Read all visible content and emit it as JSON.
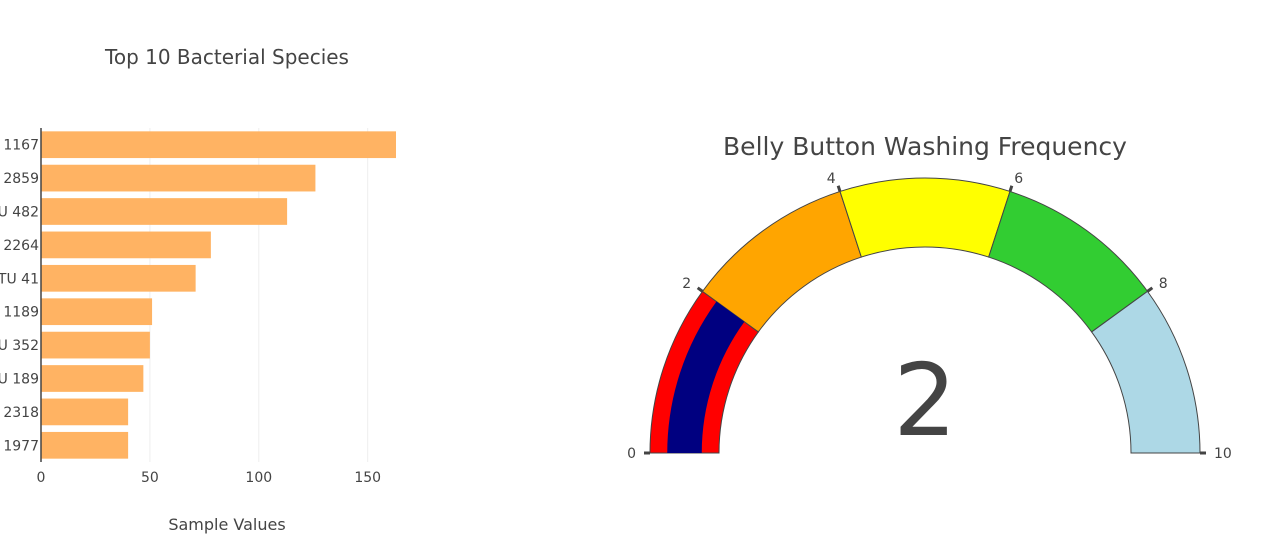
{
  "chart_data": [
    {
      "type": "bar",
      "orientation": "horizontal",
      "title": "Top 10 Bacterial Species",
      "xlabel": "Sample Values",
      "ylabel": "",
      "xlim": [
        0,
        163
      ],
      "x_ticks": [
        "0",
        "50",
        "100",
        "150"
      ],
      "grid": true,
      "bar_color": "#ffb363",
      "categories": [
        "1167",
        "2859",
        "U 482",
        "2264",
        "TU 41",
        "1189",
        "U 352",
        "U 189",
        "2318",
        "1977"
      ],
      "values": [
        163,
        126,
        113,
        78,
        71,
        51,
        50,
        47,
        40,
        40
      ]
    },
    {
      "type": "gauge",
      "title": "Belly Button Washing Frequency",
      "value": 2,
      "value_label": "2",
      "range": [
        0,
        10
      ],
      "ticks": [
        "0",
        "2",
        "4",
        "6",
        "8",
        "10"
      ],
      "bar_color": "#000080",
      "steps": [
        {
          "range": [
            0,
            2
          ],
          "color": "#ff0000"
        },
        {
          "range": [
            2,
            4
          ],
          "color": "#ffa500"
        },
        {
          "range": [
            4,
            6
          ],
          "color": "#ffff00"
        },
        {
          "range": [
            6,
            8
          ],
          "color": "#32cd32"
        },
        {
          "range": [
            8,
            10
          ],
          "color": "#add8e6"
        }
      ]
    }
  ]
}
